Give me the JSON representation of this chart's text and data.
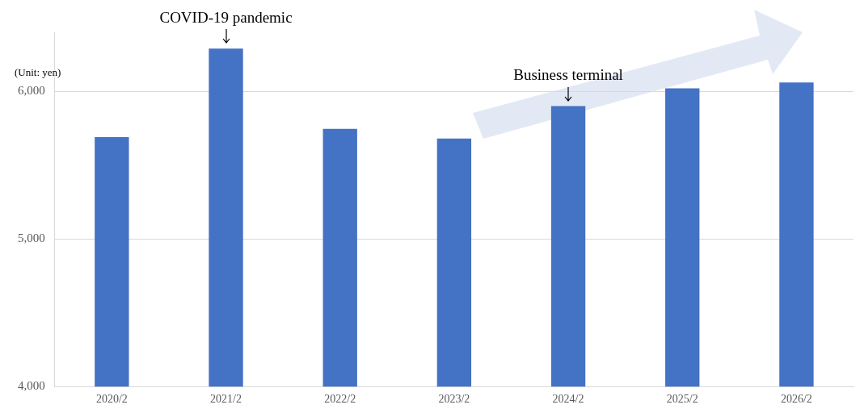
{
  "chart_data": {
    "type": "bar",
    "ylabel": "(Unit: yen)",
    "categories": [
      "2020/2",
      "2021/2",
      "2022/2",
      "2023/2",
      "2024/2",
      "2025/2",
      "2026/2"
    ],
    "values": [
      5690,
      6290,
      5745,
      5680,
      5900,
      6020,
      6060
    ],
    "color": "#4472c4",
    "ylim": [
      4000,
      6400
    ],
    "yticks": [
      {
        "value": 4000,
        "label": "4,000"
      },
      {
        "value": 5000,
        "label": "5,000"
      },
      {
        "value": 6000,
        "label": "6,000"
      }
    ],
    "grid": "y",
    "legend": false,
    "annotations": [
      {
        "text": "COVID-19 pandemic",
        "x": "2021/2",
        "y": 6290
      },
      {
        "text": "Business terminal",
        "x": "2024/2",
        "y": 5900
      }
    ]
  }
}
